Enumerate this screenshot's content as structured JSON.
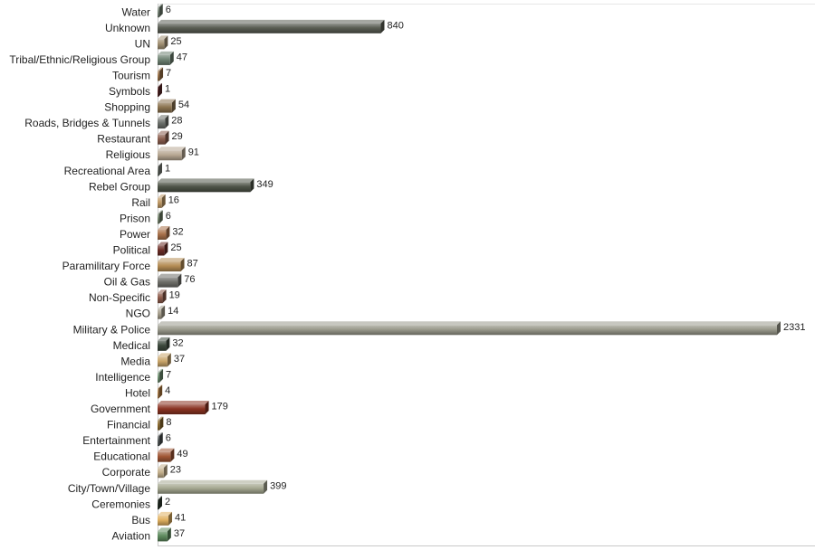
{
  "chart_data": {
    "type": "bar",
    "orientation": "horizontal",
    "title": "",
    "xlabel": "",
    "ylabel": "",
    "xlim": [
      0,
      2331
    ],
    "grid": false,
    "legend": "none",
    "categories": [
      "Water",
      "Unknown",
      "UN",
      "Tribal/Ethnic/Religious Group",
      "Tourism",
      "Symbols",
      "Shopping",
      "Roads, Bridges & Tunnels",
      "Restaurant",
      "Religious",
      "Recreational Area",
      "Rebel Group",
      "Rail",
      "Prison",
      "Power",
      "Political",
      "Paramilitary Force",
      "Oil & Gas",
      "Non-Specific",
      "NGO",
      "Military & Police",
      "Medical",
      "Media",
      "Intelligence",
      "Hotel",
      "Government",
      "Financial",
      "Entertainment",
      "Educational",
      "Corporate",
      "City/Town/Village",
      "Ceremonies",
      "Bus",
      "Aviation"
    ],
    "values": [
      6,
      840,
      25,
      47,
      7,
      1,
      54,
      28,
      29,
      91,
      1,
      349,
      16,
      6,
      32,
      25,
      87,
      76,
      19,
      14,
      2331,
      32,
      37,
      7,
      4,
      179,
      8,
      6,
      49,
      23,
      399,
      2,
      41,
      37
    ],
    "colors": [
      "#6f7d6f",
      "#5a5e54",
      "#a39274",
      "#6e8272",
      "#9c7348",
      "#5c2a2a",
      "#8c7350",
      "#6b6f6a",
      "#8a5e4e",
      "#b8a893",
      "#7a7f78",
      "#4f5548",
      "#c09a66",
      "#6e7f66",
      "#a9714a",
      "#6b2d26",
      "#b48c54",
      "#6f6f6a",
      "#8c5a4a",
      "#a8a08e",
      "#9a9a8c",
      "#3d4a3d",
      "#c8a468",
      "#6e9070",
      "#b07a3e",
      "#8a3322",
      "#8c6a2c",
      "#4a5050",
      "#a05634",
      "#c4b08c",
      "#a5a891",
      "#2f3a2f",
      "#e0b060",
      "#5f8c5f"
    ]
  }
}
